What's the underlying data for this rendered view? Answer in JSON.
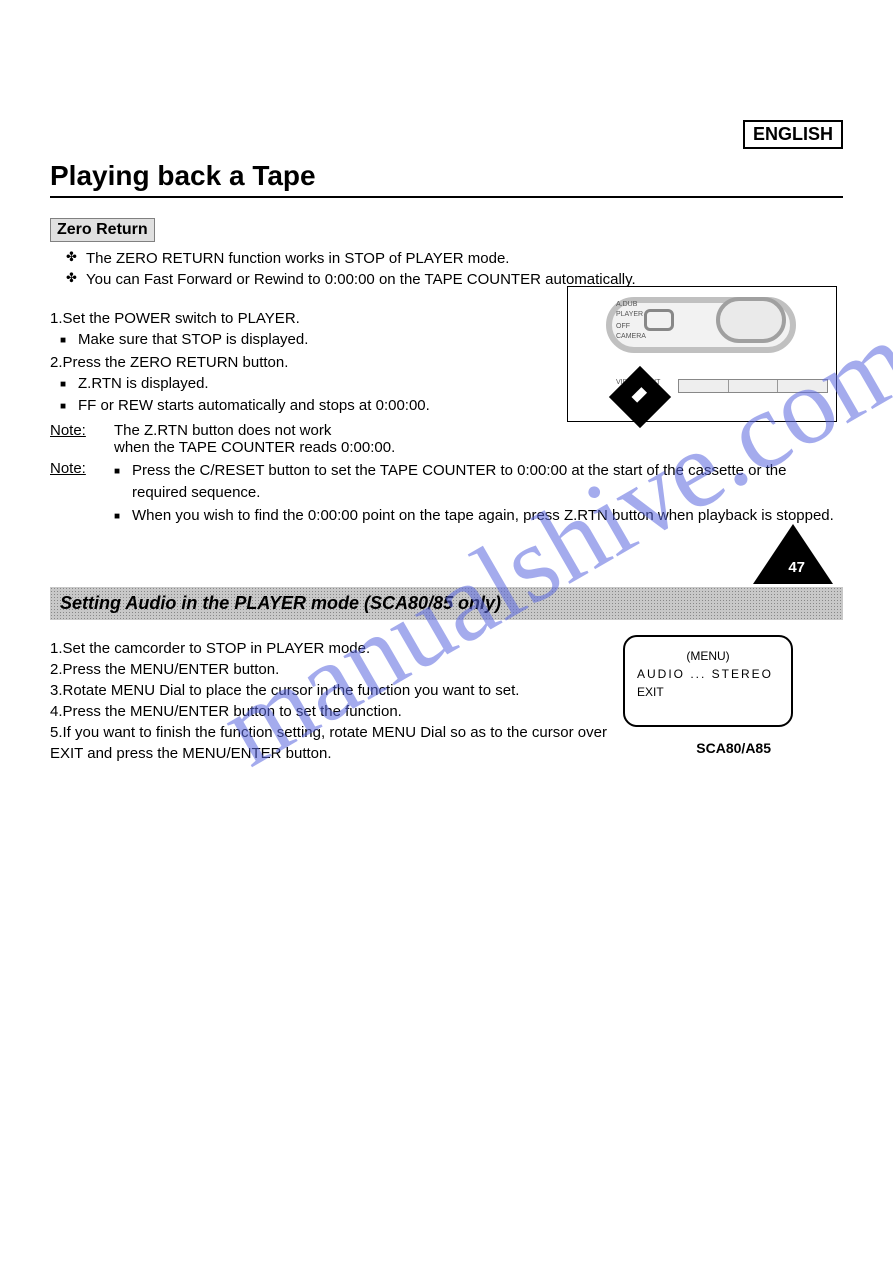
{
  "lang_badge": "ENGLISH",
  "title": "Playing back a Tape",
  "zero_return": {
    "heading": "Zero Return",
    "bullets": [
      "The ZERO RETURN function works in STOP of PLAYER mode.",
      "You can Fast Forward or Rewind to 0:00:00 on the TAPE COUNTER automatically."
    ],
    "steps": [
      {
        "line": "1.Set the POWER switch to PLAYER.",
        "subs": [
          "Make sure that STOP is displayed."
        ]
      },
      {
        "line": "2.Press the ZERO RETURN button.",
        "subs": [
          "Z.RTN is displayed.",
          "FF or REW starts automatically and stops at 0:00:00."
        ]
      }
    ],
    "note1_label": "Note:",
    "note1_body": "The Z.RTN button does not work\nwhen the TAPE COUNTER reads 0:00:00.",
    "note2_label": "Note:",
    "note2_items": [
      "Press the C/RESET button to set the TAPE COUNTER to 0:00:00 at the start of the cassette or the required sequence.",
      "When you wish to find the 0:00:00 point on the tape again, press Z.RTN button when playback is stopped."
    ]
  },
  "audio_section": {
    "heading": "Setting Audio in the PLAYER mode (SCA80/85 only)",
    "steps": [
      "1.Set the camcorder to STOP in PLAYER mode.",
      "2.Press the MENU/ENTER button.",
      "3.Rotate MENU Dial to place the cursor in the function you want to set.",
      "4.Press the MENU/ENTER button to set the function.",
      "5.If you want to finish the function setting, rotate MENU Dial so as to the cursor over EXIT and press the MENU/ENTER button."
    ],
    "menu_box": {
      "line1": "(MENU)",
      "line2": "AUDIO ... STEREO",
      "line3": "EXIT"
    },
    "menu_caption": "SCA80/A85"
  },
  "watermark": "manualshive.com",
  "page_number": "47",
  "colors": {
    "border": "#000000",
    "watermark": "#5b68e0",
    "band_bg": "#c8c8c8",
    "subhead_bg": "#e0e0e0"
  }
}
